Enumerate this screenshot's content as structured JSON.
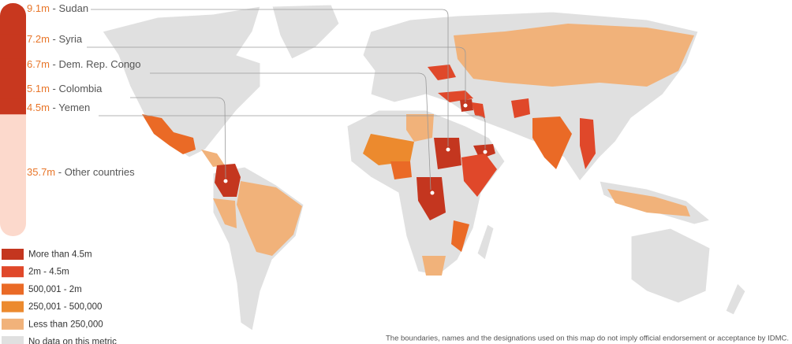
{
  "ranking": {
    "items": [
      {
        "value": 9.1,
        "label": "9.1m",
        "name": "Sudan",
        "color": "#c8381f"
      },
      {
        "value": 7.2,
        "label": "7.2m",
        "name": "Syria",
        "color": "#c8381f"
      },
      {
        "value": 6.7,
        "label": "6.7m",
        "name": "Dem. Rep. Congo",
        "color": "#c8381f"
      },
      {
        "value": 5.1,
        "label": "5.1m",
        "name": "Colombia",
        "color": "#c8381f"
      },
      {
        "value": 4.5,
        "label": "4.5m",
        "name": "Yemen",
        "color": "#c8381f"
      },
      {
        "value": 35.7,
        "label": "35.7m",
        "name": "Other countries",
        "color": "#fcd9cc"
      }
    ]
  },
  "legend": [
    {
      "label": "More than 4.5m",
      "color": "#c4361f"
    },
    {
      "label": "2m - 4.5m",
      "color": "#e0482a"
    },
    {
      "label": "500,001 - 2m",
      "color": "#ea6a26"
    },
    {
      "label": "250,001 - 500,000",
      "color": "#ec8a2e"
    },
    {
      "label": "Less than 250,000",
      "color": "#f1b27a"
    },
    {
      "label": "No data on this metric",
      "color": "#e0e0e0"
    }
  ],
  "disclaimer": "The boundaries, names and the designations used on this map do not imply official endorsement or acceptance by IDMC."
}
